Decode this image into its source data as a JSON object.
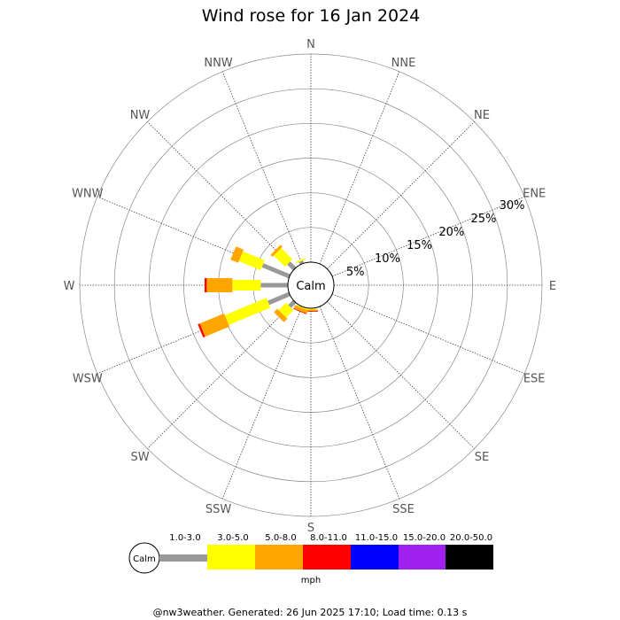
{
  "chart_data": {
    "type": "wind-rose",
    "title": "Wind rose for 16 Jan 2024",
    "directions": [
      "N",
      "NNE",
      "NE",
      "ENE",
      "E",
      "ESE",
      "SE",
      "SSE",
      "S",
      "SSW",
      "SW",
      "WSW",
      "W",
      "WNW",
      "NW",
      "NNW"
    ],
    "radial_ticks": [
      "5%",
      "10%",
      "15%",
      "20%",
      "25%",
      "30%"
    ],
    "radial_max_percent": 30,
    "calm_label": "Calm",
    "unit_label": "mph",
    "speed_bins": [
      {
        "label": "1.0-3.0",
        "color": "#999999"
      },
      {
        "label": "3.0-5.0",
        "color": "#ffff00"
      },
      {
        "label": "5.0-8.0",
        "color": "#ffa500"
      },
      {
        "label": "8.0-11.0",
        "color": "#ff0000"
      },
      {
        "label": "11.0-15.0",
        "color": "#0000ff"
      },
      {
        "label": "15.0-20.0",
        "color": "#a020f0"
      },
      {
        "label": "20.0-50.0",
        "color": "#000000"
      }
    ],
    "series_cumulative_percent": {
      "N": [
        0,
        0,
        0,
        0,
        0,
        0,
        0
      ],
      "NNE": [
        0,
        0,
        0,
        0,
        0,
        0,
        0
      ],
      "NE": [
        0,
        0,
        0,
        0,
        0,
        0,
        0
      ],
      "ENE": [
        0,
        0,
        0,
        0,
        0,
        0,
        0
      ],
      "E": [
        0,
        0,
        0,
        0,
        0,
        0,
        0
      ],
      "ESE": [
        0,
        0,
        0,
        0,
        0,
        0,
        0
      ],
      "SE": [
        0,
        0,
        0,
        0,
        0,
        0,
        0
      ],
      "SSE": [
        0,
        0,
        0,
        0,
        0,
        0,
        0
      ],
      "S": [
        0,
        0.2,
        0.4,
        0.5,
        0.5,
        0.5,
        0.5
      ],
      "SSW": [
        0,
        0.2,
        0.7,
        0.8,
        0.8,
        0.8,
        0.8
      ],
      "SW": [
        1.0,
        2.5,
        3.2,
        3.2,
        3.2,
        3.2,
        3.2
      ],
      "WSW": [
        3.3,
        9.8,
        13.6,
        13.9,
        13.9,
        13.9,
        13.9
      ],
      "W": [
        3.9,
        8.0,
        11.7,
        12.0,
        12.0,
        12.0,
        12.0
      ],
      "WNW": [
        4.2,
        7.6,
        8.8,
        8.8,
        8.8,
        8.8,
        8.8
      ],
      "NW": [
        1.2,
        3.5,
        3.9,
        3.9,
        3.9,
        3.9,
        3.9
      ],
      "NNW": [
        0.4,
        0.6,
        0.6,
        0.6,
        0.6,
        0.6,
        0.6
      ]
    }
  },
  "footer": "@nw3weather. Generated: 26 Jun 2025 17:10; Load time: 0.13 s"
}
